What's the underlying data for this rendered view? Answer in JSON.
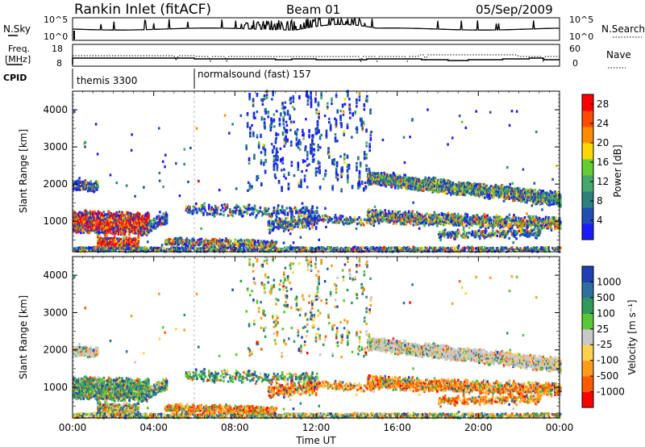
{
  "header": {
    "title": "Rankin Inlet (fitACF)",
    "beam": "Beam 01",
    "date": "05/Sep/2009"
  },
  "nsky_panel": {
    "left_label": "N.Sky",
    "right_label": "N.Search",
    "left_ticks": [
      "10^5",
      "10^0"
    ],
    "right_ticks": [
      "10^5",
      "10^0"
    ]
  },
  "freq_panel": {
    "left_label_1": "Freq.",
    "left_label_2": "[MHz]",
    "right_label": "Nave",
    "left_ticks": [
      "18",
      "8"
    ],
    "right_ticks": [
      "60",
      "0"
    ]
  },
  "cpid": {
    "label": "CPID",
    "modes": [
      {
        "name": "themis 3300",
        "start_hour": 0
      },
      {
        "name": "normalsound (fast) 157",
        "start_hour": 6
      }
    ]
  },
  "colors": {
    "power": [
      "#1a1aff",
      "#1f4fb3",
      "#2f7f7f",
      "#44a86a",
      "#66cc33",
      "#ffd700",
      "#ff8c00",
      "#ff4a00",
      "#ff0000"
    ],
    "velocity": [
      "#ff0000",
      "#ff5a00",
      "#ff9a1a",
      "#ffd24d",
      "#c8c8c8",
      "#5ac832",
      "#2e9a5a",
      "#2f6fa0",
      "#1f3fb5"
    ]
  },
  "chart_data": [
    {
      "type": "heatmap",
      "title": "",
      "xlabel": "Time UT",
      "ylabel": "Slant Range [km]",
      "xlim": [
        0,
        24
      ],
      "ylim": [
        180,
        4500
      ],
      "x_ticks": [
        "00:00",
        "04:00",
        "08:00",
        "12:00",
        "16:00",
        "20:00",
        "00:00"
      ],
      "y_ticks": [
        1000,
        2000,
        3000,
        4000
      ],
      "colorbar": {
        "label": "Power [dB]",
        "ticks": [
          4,
          8,
          12,
          16,
          20,
          24,
          28
        ],
        "range": [
          0,
          30
        ]
      }
    },
    {
      "type": "heatmap",
      "title": "",
      "xlabel": "Time UT",
      "ylabel": "Slant Range [km]",
      "xlim": [
        0,
        24
      ],
      "ylim": [
        180,
        4500
      ],
      "x_ticks": [
        "00:00",
        "04:00",
        "08:00",
        "12:00",
        "16:00",
        "20:00",
        "00:00"
      ],
      "y_ticks": [
        1000,
        2000,
        3000,
        4000
      ],
      "colorbar": {
        "label": "Velocity [m s⁻¹]",
        "ticks": [
          "1000",
          "500",
          "100",
          "25",
          "-25",
          "-100",
          "-500",
          "-1000"
        ]
      }
    }
  ]
}
